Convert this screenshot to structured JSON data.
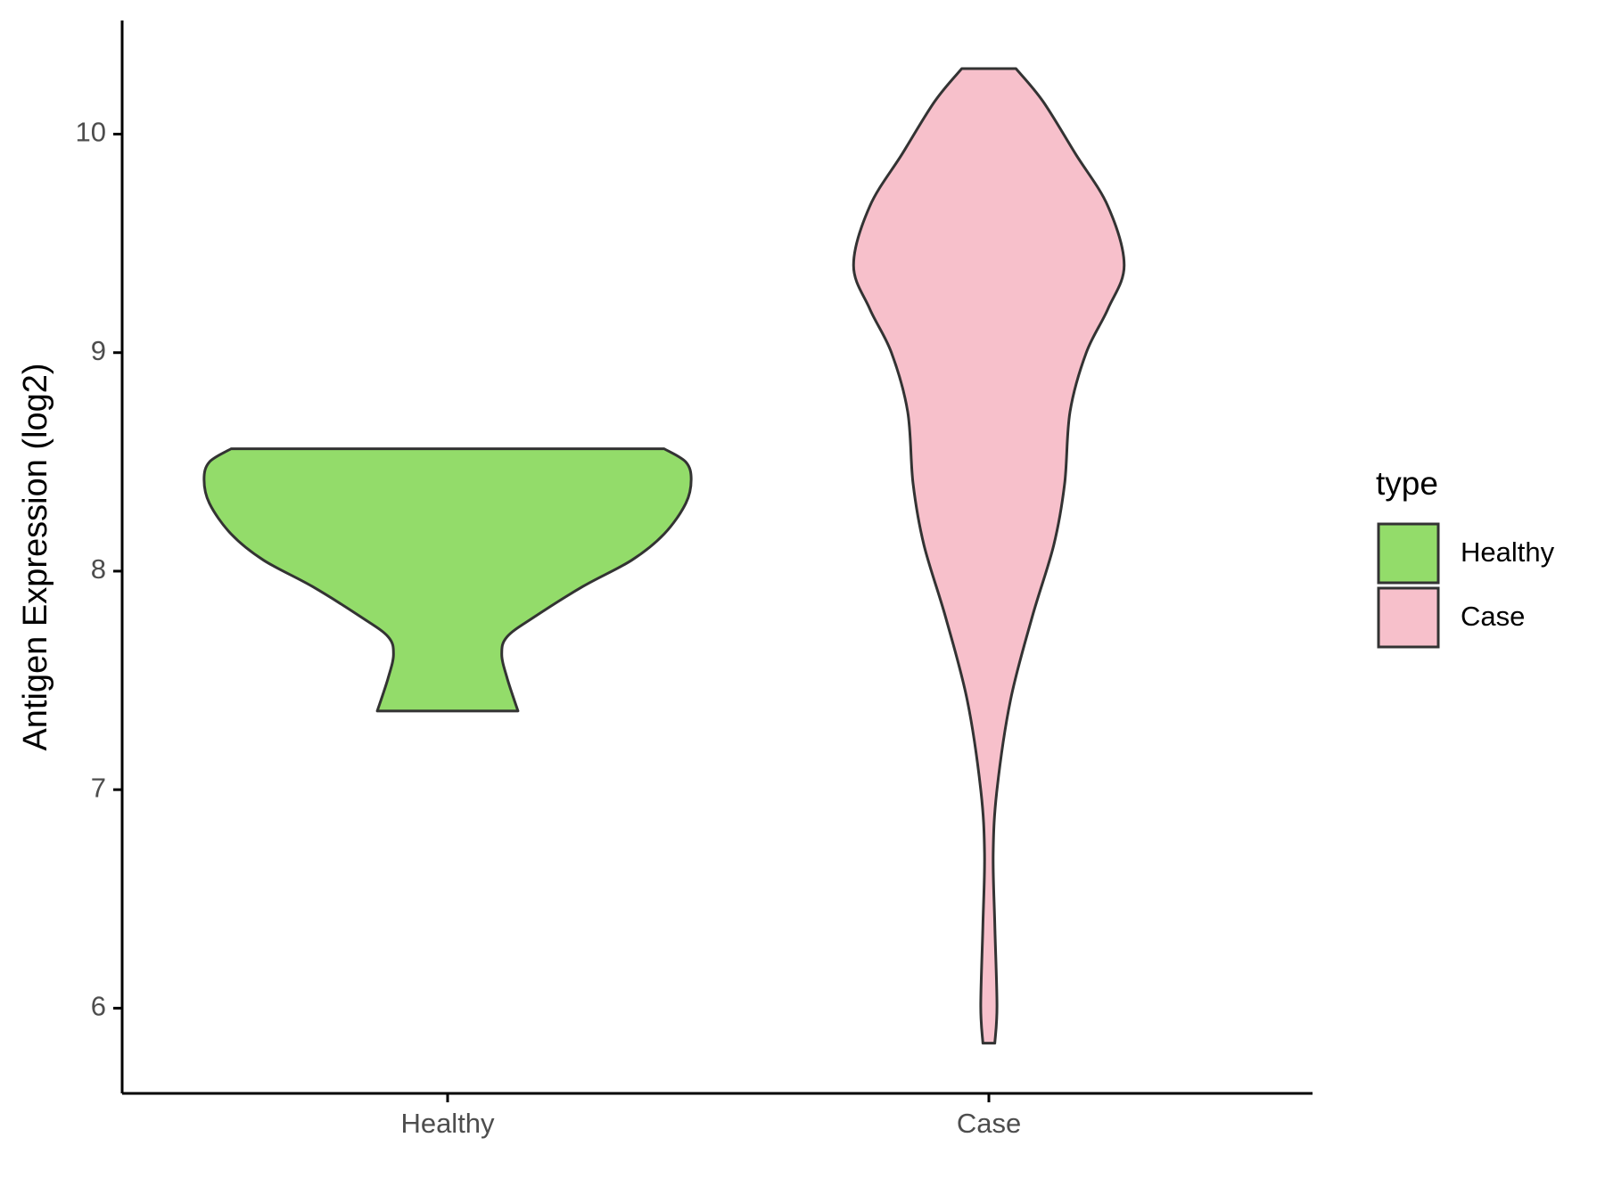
{
  "chart_data": {
    "type": "violin",
    "y_label": "Antigen Expression (log2)",
    "categories": [
      "Healthy",
      "Case"
    ],
    "legend_title": "type",
    "ylim": [
      5.61,
      10.52
    ],
    "yticks": [
      6,
      7,
      8,
      9,
      10
    ],
    "series": [
      {
        "name": "Healthy",
        "color": "#93dc6a",
        "y": [
          8.56,
          8.5,
          8.42,
          8.31,
          8.17,
          8.05,
          7.93,
          7.79,
          7.7,
          7.62,
          7.51,
          7.36
        ],
        "widths": [
          0.4,
          0.44,
          0.45,
          0.44,
          0.4,
          0.34,
          0.25,
          0.16,
          0.11,
          0.1,
          0.11,
          0.13
        ]
      },
      {
        "name": "Case",
        "color": "#f7c0cb",
        "y": [
          10.3,
          10.15,
          9.91,
          9.67,
          9.4,
          9.2,
          9.0,
          8.73,
          8.4,
          8.12,
          7.79,
          7.41,
          7.0,
          6.71,
          6.38,
          6.01,
          5.84
        ],
        "widths": [
          0.05,
          0.1,
          0.16,
          0.22,
          0.25,
          0.22,
          0.18,
          0.15,
          0.14,
          0.12,
          0.08,
          0.04,
          0.015,
          0.008,
          0.011,
          0.015,
          0.011
        ]
      }
    ]
  }
}
